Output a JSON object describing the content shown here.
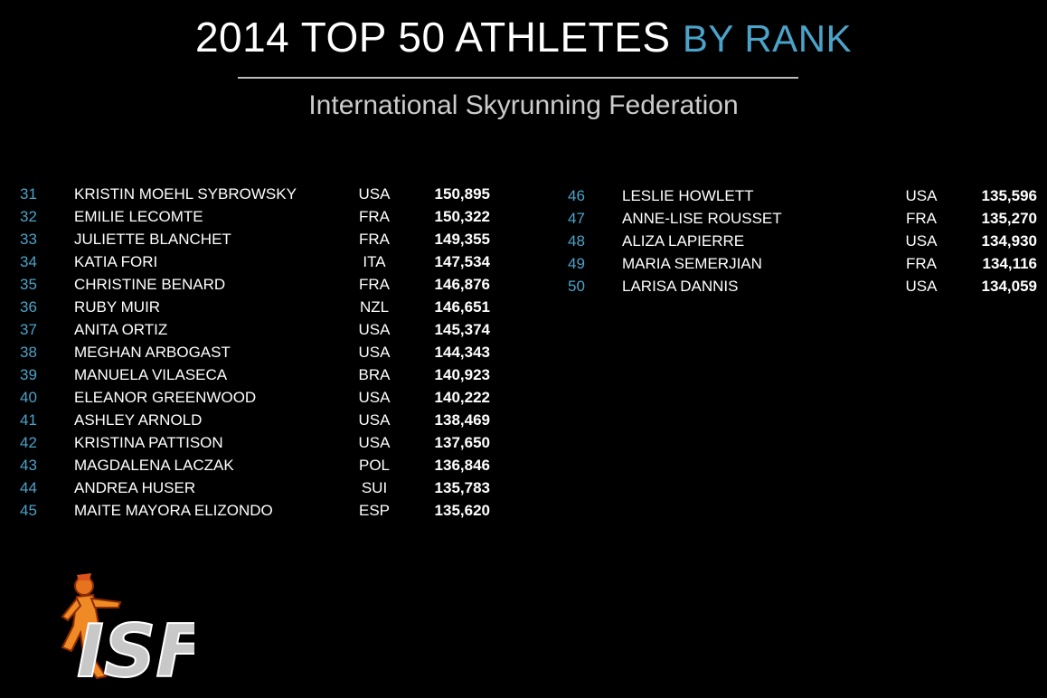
{
  "header": {
    "title": "2014 TOP 50 ATHLETES",
    "title_accent": "BY RANK",
    "subtitle": "International Skyrunning Federation"
  },
  "tables": [
    {
      "rows": [
        [
          "31",
          "KRISTIN MOEHL SYBROWSKY",
          "USA",
          "150,895"
        ],
        [
          "32",
          "EMILIE LECOMTE",
          "FRA",
          "150,322"
        ],
        [
          "33",
          "JULIETTE BLANCHET",
          "FRA",
          "149,355"
        ],
        [
          "34",
          "KATIA FORI",
          "ITA",
          "147,534"
        ],
        [
          "35",
          "CHRISTINE BENARD",
          "FRA",
          "146,876"
        ],
        [
          "36",
          "RUBY MUIR",
          "NZL",
          "146,651"
        ],
        [
          "37",
          "ANITA ORTIZ",
          "USA",
          "145,374"
        ],
        [
          "38",
          "MEGHAN ARBOGAST",
          "USA",
          "144,343"
        ],
        [
          "39",
          "MANUELA VILASECA",
          "BRA",
          "140,923"
        ],
        [
          "40",
          "ELEANOR GREENWOOD",
          "USA",
          "140,222"
        ],
        [
          "41",
          "ASHLEY ARNOLD",
          "USA",
          "138,469"
        ],
        [
          "42",
          "KRISTINA PATTISON",
          "USA",
          "137,650"
        ],
        [
          "43",
          "MAGDALENA LACZAK",
          "POL",
          "136,846"
        ],
        [
          "44",
          "ANDREA HUSER",
          "SUI",
          "135,783"
        ],
        [
          "45",
          "MAITE MAYORA ELIZONDO",
          "ESP",
          "135,620"
        ]
      ]
    },
    {
      "rows": [
        [
          "46",
          "LESLIE HOWLETT",
          "USA",
          "135,596"
        ],
        [
          "47",
          "ANNE-LISE ROUSSET",
          "FRA",
          "135,270"
        ],
        [
          "48",
          "ALIZA LAPIERRE",
          "USA",
          "134,930"
        ],
        [
          "49",
          "MARIA SEMERJIAN",
          "FRA",
          "134,116"
        ],
        [
          "50",
          "LARISA DANNIS",
          "USA",
          "134,059"
        ]
      ]
    }
  ],
  "logo": {
    "text": "ISF"
  }
}
